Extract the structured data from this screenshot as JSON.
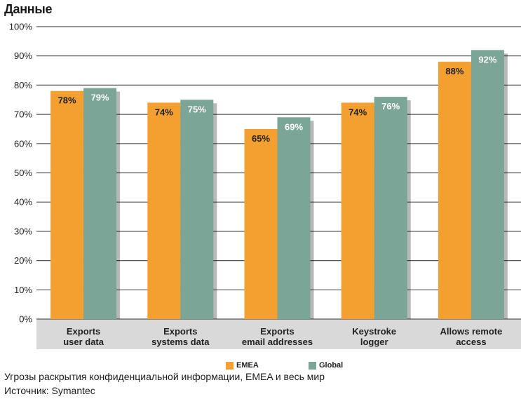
{
  "chart_data": {
    "type": "bar",
    "title": "Данные",
    "categories": [
      [
        "Exports",
        "user data"
      ],
      [
        "Exports",
        "systems data"
      ],
      [
        "Exports",
        "email addresses"
      ],
      [
        "Keystroke",
        "logger"
      ],
      [
        "Allows remote",
        "access"
      ]
    ],
    "series": [
      {
        "name": "EMEA",
        "color": "#f3a030",
        "label_color": "#222222",
        "values": [
          78,
          74,
          65,
          74,
          88
        ],
        "labels": [
          "78%",
          "74%",
          "65%",
          "74%",
          "88%"
        ]
      },
      {
        "name": "Global",
        "color": "#7ba596",
        "label_color": "#ffffff",
        "values": [
          79,
          75,
          69,
          76,
          92
        ],
        "labels": [
          "79%",
          "75%",
          "69%",
          "76%",
          "92%"
        ]
      }
    ],
    "ylim": [
      0,
      100
    ],
    "yticks": [
      0,
      10,
      20,
      30,
      40,
      50,
      60,
      70,
      80,
      90,
      100
    ],
    "ytick_labels": [
      "0%",
      "10%",
      "20%",
      "30%",
      "40%",
      "50%",
      "60%",
      "70%",
      "80%",
      "90%",
      "100%"
    ],
    "grid": true,
    "legend_position": "bottom"
  },
  "caption": "Угрозы раскрытия конфиденциальной информации, EMEA и весь мир",
  "source": "Источник: Symantec"
}
